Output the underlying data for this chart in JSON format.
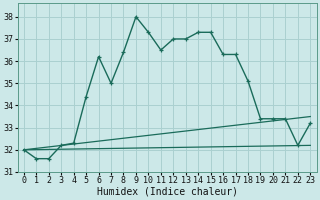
{
  "xlabel": "Humidex (Indice chaleur)",
  "bg_color": "#cce8e8",
  "grid_color": "#aad0d0",
  "line_color": "#1a6b5a",
  "xlim": [
    -0.5,
    23.5
  ],
  "ylim": [
    31.0,
    38.6
  ],
  "yticks": [
    31,
    32,
    33,
    34,
    35,
    36,
    37,
    38
  ],
  "xticks": [
    0,
    1,
    2,
    3,
    4,
    5,
    6,
    7,
    8,
    9,
    10,
    11,
    12,
    13,
    14,
    15,
    16,
    17,
    18,
    19,
    20,
    21,
    22,
    23
  ],
  "main_curve_x": [
    0,
    1,
    2,
    3,
    4,
    5,
    6,
    7,
    8,
    9,
    10,
    11,
    12,
    13,
    14,
    15,
    16,
    17,
    18,
    19,
    20,
    21,
    22,
    23
  ],
  "main_curve_y": [
    32.0,
    31.6,
    31.6,
    32.2,
    32.3,
    34.4,
    36.2,
    35.0,
    36.4,
    38.0,
    37.3,
    36.5,
    37.0,
    37.0,
    37.3,
    37.3,
    36.3,
    36.3,
    35.1,
    33.4,
    33.4,
    33.4,
    32.2,
    33.2
  ],
  "trend_line_x": [
    0,
    23
  ],
  "trend_line_y": [
    32.0,
    33.5
  ],
  "flat_line_x": [
    0,
    23
  ],
  "flat_line_y": [
    32.0,
    32.2
  ],
  "ticker_fontsize": 6,
  "xlabel_fontsize": 7
}
